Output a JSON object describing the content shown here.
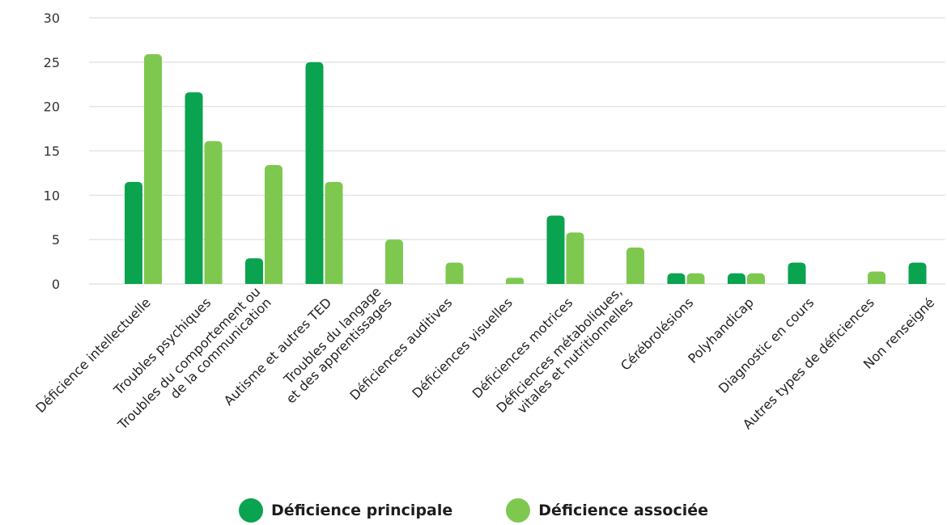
{
  "chart_data": {
    "type": "bar",
    "categories": [
      [
        "Déficience intellectuelle"
      ],
      [
        "Troubles psychiques"
      ],
      [
        "Troubles du comportement ou",
        "de la communication"
      ],
      [
        "Autisme et autres TED"
      ],
      [
        "Troubles du langage",
        "et des apprentissages"
      ],
      [
        "Déficiences auditives"
      ],
      [
        "Déficiences visuelles"
      ],
      [
        "Déficiences motrices"
      ],
      [
        "Déficiences métaboliques,",
        "vitales et nutritionnelles"
      ],
      [
        "Cérébrolésions"
      ],
      [
        "Polyhandicap"
      ],
      [
        "Diagnostic en cours"
      ],
      [
        "Autres types de déficiences"
      ],
      [
        "Non renseigné"
      ]
    ],
    "series": [
      {
        "name": "Déficience principale",
        "color": "#0aa34f",
        "values": [
          11.5,
          21.6,
          2.9,
          25.0,
          0,
          0,
          0,
          7.7,
          0,
          1.2,
          1.2,
          2.4,
          0,
          2.4
        ]
      },
      {
        "name": "Déficience associée",
        "color": "#7ec850",
        "values": [
          25.9,
          16.1,
          13.4,
          11.5,
          5.0,
          2.4,
          0.7,
          5.8,
          4.1,
          1.2,
          1.2,
          0,
          1.4,
          0
        ]
      }
    ],
    "ylim": [
      0,
      30
    ],
    "yticks": [
      0,
      5,
      10,
      15,
      20,
      25,
      30
    ],
    "grid": true,
    "legend_position": "bottom-center"
  }
}
